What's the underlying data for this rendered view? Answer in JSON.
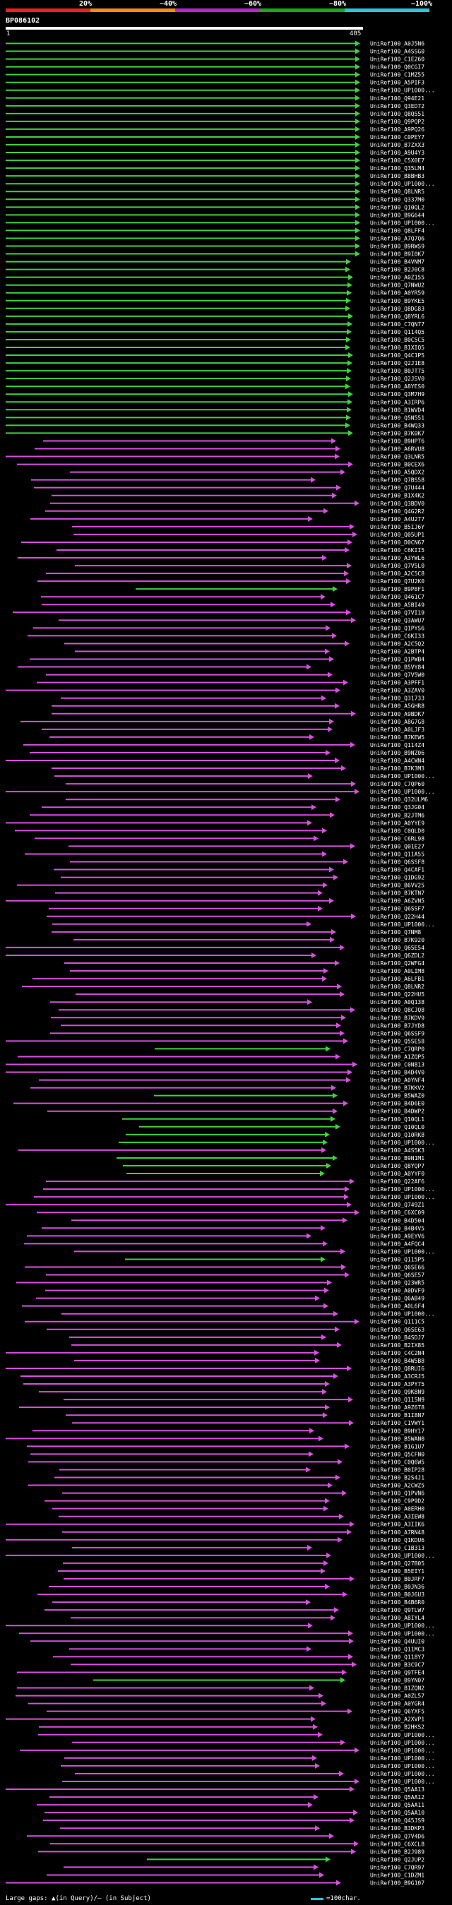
{
  "legend": {
    "ticks": [
      "20%",
      "~40%",
      "~60%",
      "~80%",
      "~100%"
    ],
    "colors": [
      "#e8231f",
      "#f08c1e",
      "#b22bc6",
      "#1fa51f",
      "#2bc4d8"
    ]
  },
  "query": {
    "id": "BP086102",
    "start": "1",
    "end": "405"
  },
  "hit_colors": {
    "magenta": "#d94fe0",
    "green": "#3fd23f"
  },
  "hits": [
    "UniRef100_A0J5N6",
    "UniRef100_A4SSG0",
    "UniRef100_C1E260",
    "UniRef100_Q0CGI7",
    "UniRef100_C1MZ55",
    "UniRef100_A5PIF3",
    "UniRef100_UP1000...",
    "UniRef100_Q94E21",
    "UniRef100_Q3ED72",
    "UniRef100_Q8Q551",
    "UniRef100_Q9PQP2",
    "UniRef100_A9PQ26",
    "UniRef100_C0PEY7",
    "UniRef100_B7ZXX3",
    "UniRef100_A9U4Y3",
    "UniRef100_C5X0E7",
    "UniRef100_Q35LM4",
    "UniRef100_B8BHB3",
    "UniRef100_UP1000...",
    "UniRef100_Q8LNR5",
    "UniRef100_Q337M0",
    "UniRef100_Q10QL2",
    "UniRef100_B9G644",
    "UniRef100_UP1000...",
    "UniRef100_Q8LFF4",
    "UniRef100_A7Q7Q6",
    "UniRef100_B9RWS9",
    "UniRef100_B9I0K7",
    "UniRef100_B4VNM7",
    "UniRef100_B2J0C8",
    "UniRef100_A0Z155",
    "UniRef100_Q7NWU2",
    "UniRef100_A0YR59",
    "UniRef100_B9YKE5",
    "UniRef100_Q8DG83",
    "UniRef100_Q8YRL6",
    "UniRef100_C7QN77",
    "UniRef100_Q114Q5",
    "UniRef100_B0C5C5",
    "UniRef100_B1XIQ5",
    "UniRef100_Q4C1P5",
    "UniRef100_Q2J1E8",
    "UniRef100_B0JT75",
    "UniRef100_Q2JSV0",
    "UniRef100_A8YES0",
    "UniRef100_Q3M7H9",
    "UniRef100_A3IRP6",
    "UniRef100_B1WVD4",
    "UniRef100_Q5N551",
    "UniRef100_B4WQ33",
    "UniRef100_B7K0K7",
    "UniRef100_B9HPT6",
    "UniRef100_A6RVU8",
    "UniRef100_Q3LNR5",
    "UniRef100_B0CEX6",
    "UniRef100_A5QDX2",
    "UniRef100_Q7BS58",
    "UniRef100_Q7U444",
    "UniRef100_B1X4K2",
    "UniRef100_Q3BDV0",
    "UniRef100_Q4G2R2",
    "UniRef100_A4U277",
    "UniRef100_B5IJ6Y",
    "UniRef100_Q05UP1",
    "UniRef100_D0CN67",
    "UniRef100_C6KII5",
    "UniRef100_A3YWL6",
    "UniRef100_Q7V5L0",
    "UniRef100_A2C5C8",
    "UniRef100_Q7U2K0",
    "UniRef100_B9P8F1",
    "UniRef100_Q461C7",
    "UniRef100_A5BI49",
    "UniRef100_Q7VI19",
    "UniRef100_Q3AWU7",
    "UniRef100_Q1PYS6",
    "UniRef100_C6KI33",
    "UniRef100_A2C5Q2",
    "UniRef100_A2BTP4",
    "UniRef100_Q1PWB4",
    "UniRef100_B5VY84",
    "UniRef100_Q7V5W0",
    "UniRef100_A3PFF1",
    "UniRef100_A3ZAV0",
    "UniRef100_Q31733",
    "UniRef100_A5GHR8",
    "UniRef100_A9BDK7",
    "UniRef100_A8G7G8",
    "UniRef100_A0LJF3",
    "UniRef100_B7KEW5",
    "UniRef100_Q114Z4",
    "UniRef100_B9NZ06",
    "UniRef100_A4CWN4",
    "UniRef100_B7K3M3",
    "UniRef100_UP1000...",
    "UniRef100_C7QP60",
    "UniRef100_UP1000...",
    "UniRef100_Q32ULM6",
    "UniRef100_Q3JG04",
    "UniRef100_B2JTM6",
    "UniRef100_A0YYE9",
    "UniRef100_C0QLD0",
    "UniRef100_C6RL98",
    "UniRef100_Q01E27",
    "UniRef100_Q11A55",
    "UniRef100_Q6SSF8",
    "UniRef100_Q4CAF1",
    "UniRef100_Q1DG92",
    "UniRef100_B6VV25",
    "UniRef100_B7KTN7",
    "UniRef100_A6ZVN5",
    "UniRef100_Q6SSF7",
    "UniRef100_Q22H44",
    "UniRef100_UP1000...",
    "UniRef100_Q7NM8",
    "UniRef100_B7K920",
    "UniRef100_Q6SE54",
    "UniRef100_Q6ZDL2",
    "UniRef100_Q2WFG4",
    "UniRef100_A0LIM8",
    "UniRef100_A6LFB1",
    "UniRef100_Q8LNR2",
    "UniRef100_Q22HU5",
    "UniRef100_A0Q138",
    "UniRef100_Q8CJQ8",
    "UniRef100_B7KDV9",
    "UniRef100_B7JYD8",
    "UniRef100_Q6SSF9",
    "UniRef100_Q5SE58",
    "UniRef100_C7QRP0",
    "UniRef100_A1ZQP5",
    "UniRef100_C0N813",
    "UniRef100_B4D4V0",
    "UniRef100_A0YNF4",
    "UniRef100_B7KKV2",
    "UniRef100_B5WAZ0",
    "UniRef100_B4D6E0",
    "UniRef100_B4DWP2",
    "UniRef100_Q10QL1",
    "UniRef100_Q10QL0",
    "UniRef100_Q10RK8",
    "UniRef100_UP1000...",
    "UniRef100_A4S5K3",
    "UniRef100_B9N1M1",
    "UniRef100_Q8YQP7",
    "UniRef100_A0YYF0",
    "UniRef100_Q22AF6",
    "UniRef100_UP1000...",
    "UniRef100_UP1000...",
    "UniRef100_Q749Z1",
    "UniRef100_C6XC09",
    "UniRef100_B4D504",
    "UniRef100_B4B4V5",
    "UniRef100_A9EYV6",
    "UniRef100_A4FQC4",
    "UniRef100_UP1000...",
    "UniRef100_Q115P5",
    "UniRef100_Q6SE66",
    "UniRef100_Q6SE57",
    "UniRef100_Q23WR5",
    "UniRef100_A0DVF9",
    "UniRef100_Q6AB49",
    "UniRef100_A0L6F4",
    "UniRef100_UP1000...",
    "UniRef100_Q111C5",
    "UniRef100_Q6SE63",
    "UniRef100_B4SDJ7",
    "UniRef100_B2IX85",
    "UniRef100_C4C2N4",
    "UniRef100_B4W5B8",
    "UniRef100_Q8RUI6",
    "UniRef100_A3CRJ5",
    "UniRef100_A3PY75",
    "UniRef100_Q9K8N9",
    "UniRef100_Q115N9",
    "UniRef100_A9Z6T8",
    "UniRef100_B1I8N7",
    "UniRef100_C1VWY1",
    "UniRef100_B9HY17",
    "UniRef100_B5WAN0",
    "UniRef100_B1G1U7",
    "UniRef100_Q5CFN0",
    "UniRef100_C0Q6W5",
    "UniRef100_B0IP28",
    "UniRef100_B2S4J1",
    "UniRef100_A2CWZ5",
    "UniRef100_Q1PVN6",
    "UniRef100_C9P9D2",
    "UniRef100_A0ERH0",
    "UniRef100_A3IEW8",
    "UniRef100_A3IIK6",
    "UniRef100_A7RN48",
    "UniRef100_Q1KDU6",
    "UniRef100_C1B313",
    "UniRef100_UP1000...",
    "UniRef100_Q27B05",
    "UniRef100_B5EIY1",
    "UniRef100_B0JRF7",
    "UniRef100_B0JN36",
    "UniRef100_B0J6U3",
    "UniRef100_B4B6R0",
    "UniRef100_Q9TLW7",
    "UniRef100_A8IYL4",
    "UniRef100_UP1000...",
    "UniRef100_UP1000...",
    "UniRef100_Q4UUI0",
    "UniRef100_Q11MC3",
    "UniRef100_Q118Y7",
    "UniRef100_B3C9C7",
    "UniRef100_Q9TFE4",
    "UniRef100_B9YN07",
    "UniRef100_B1ZQN2",
    "UniRef100_A0ZL57",
    "UniRef100_A0YGR4",
    "UniRef100_Q6YXF5",
    "UniRef100_A2XVP1",
    "UniRef100_B2HKS2",
    "UniRef100_UP1000...",
    "UniRef100_UP1000...",
    "UniRef100_UP1000...",
    "UniRef100_UP1000...",
    "UniRef100_UP1000...",
    "UniRef100_UP1000...",
    "UniRef100_UP1000...",
    "UniRef100_Q5AA13",
    "UniRef100_Q5AA12",
    "UniRef100_Q5AA11",
    "UniRef100_Q5AA10",
    "UniRef100_Q45JS9",
    "UniRef100_B3DKP3",
    "UniRef100_Q7V4D6",
    "UniRef100_C6XCL8",
    "UniRef100_B2J989",
    "UniRef100_Q2JUP2",
    "UniRef100_C7QR97",
    "UniRef100_C1DZM1",
    "UniRef100_B9G107"
  ],
  "footer": {
    "text": "Large gaps: ▲(in Query)/– (in Subject)",
    "scale_label": "=100char."
  }
}
